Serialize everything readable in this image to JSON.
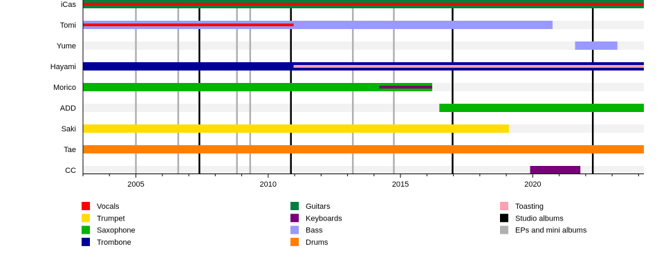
{
  "chart_data": {
    "type": "timeline",
    "title": "",
    "xlabel": "",
    "ylabel": "",
    "xlim": [
      2003.0,
      2024.2
    ],
    "x_ticks": [
      2005,
      2010,
      2015,
      2020
    ],
    "grid": false,
    "legend_position": "bottom",
    "roles": [
      {
        "name": "Vocals",
        "color": "#ff0000"
      },
      {
        "name": "Trumpet",
        "color": "#ffdd00"
      },
      {
        "name": "Saxophone",
        "color": "#00b400"
      },
      {
        "name": "Trombone",
        "color": "#000096"
      },
      {
        "name": "Guitars",
        "color": "#008040"
      },
      {
        "name": "Keyboards",
        "color": "#780078"
      },
      {
        "name": "Bass",
        "color": "#9999ff"
      },
      {
        "name": "Drums",
        "color": "#ff8000"
      },
      {
        "name": "Toasting",
        "color": "#ffa0b0"
      },
      {
        "name": "Studio albums",
        "color": "#000000"
      },
      {
        "name": "EPs and mini albums",
        "color": "#b0b0b0"
      }
    ],
    "members": [
      {
        "name": "iCas",
        "bars": [
          {
            "role": "Guitars",
            "from": 2003.0,
            "to": 2024.2
          }
        ],
        "overlays": [
          {
            "role": "Vocals",
            "from": 2003.0,
            "to": 2024.2
          }
        ]
      },
      {
        "name": "Tomi",
        "bars": [
          {
            "role": "Bass",
            "from": 2003.0,
            "to": 2020.75
          }
        ],
        "overlays": [
          {
            "role": "Vocals",
            "from": 2003.0,
            "to": 2010.96
          }
        ]
      },
      {
        "name": "Yume",
        "bars": [
          {
            "role": "Bass",
            "from": 2021.6,
            "to": 2023.2
          }
        ],
        "overlays": []
      },
      {
        "name": "Hayami",
        "bars": [
          {
            "role": "Trombone",
            "from": 2003.0,
            "to": 2024.2
          }
        ],
        "overlays": [
          {
            "role": "Toasting",
            "from": 2010.96,
            "to": 2024.2
          }
        ]
      },
      {
        "name": "Morico",
        "bars": [
          {
            "role": "Saxophone",
            "from": 2003.0,
            "to": 2016.2
          }
        ],
        "overlays": [
          {
            "role": "Keyboards",
            "from": 2014.2,
            "to": 2016.2
          }
        ]
      },
      {
        "name": "ADD",
        "bars": [
          {
            "role": "Saxophone",
            "from": 2016.47,
            "to": 2024.2
          }
        ],
        "overlays": []
      },
      {
        "name": "Saki",
        "bars": [
          {
            "role": "Trumpet",
            "from": 2003.0,
            "to": 2019.1
          }
        ],
        "overlays": []
      },
      {
        "name": "Tae",
        "bars": [
          {
            "role": "Drums",
            "from": 2003.0,
            "to": 2024.2
          }
        ],
        "overlays": []
      },
      {
        "name": "CC",
        "bars": [
          {
            "role": "Keyboards",
            "from": 2019.9,
            "to": 2021.8
          }
        ],
        "overlays": []
      }
    ],
    "studio_albums": [
      2007.4,
      2010.86,
      2016.97,
      2022.27
    ],
    "eps_and_mini_albums": [
      2005.0,
      2006.6,
      2008.82,
      2009.32,
      2013.2,
      2014.75
    ]
  }
}
